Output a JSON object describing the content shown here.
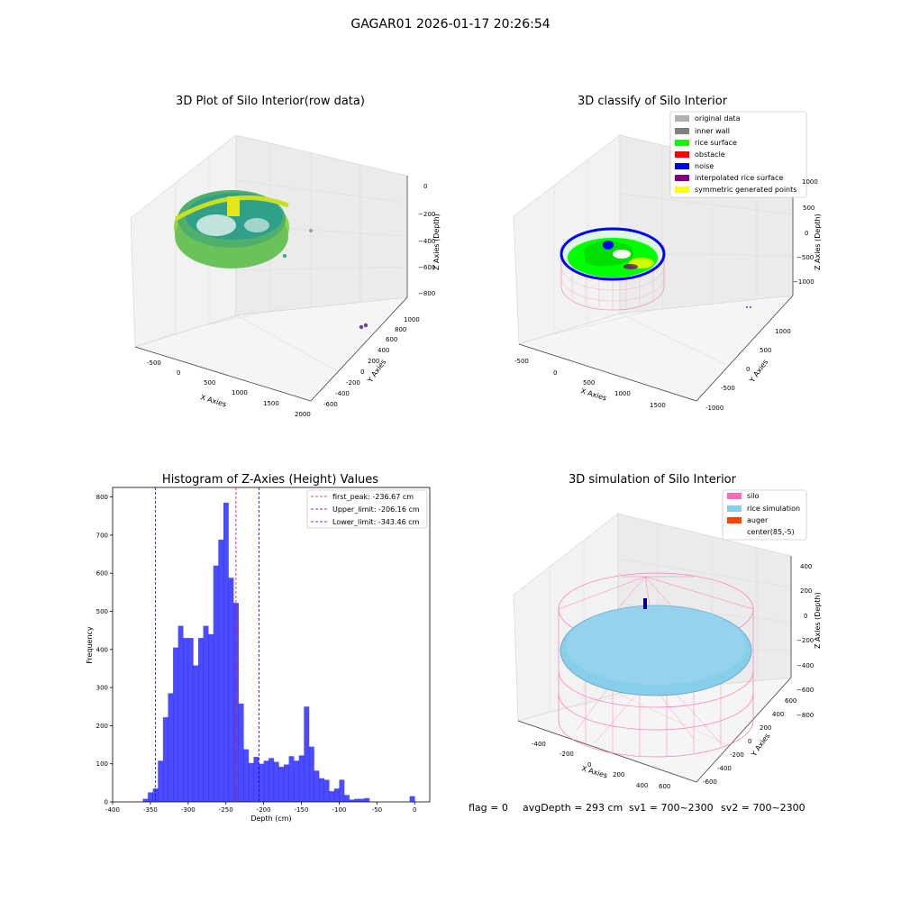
{
  "figure": {
    "suptitle": "GAGAR01 2026-01-17 20:26:54",
    "footer": {
      "flag": "flag = 0",
      "avg_depth": "avgDepth = 293 cm",
      "sv1": "sv1 = 700~2300",
      "sv2": "sv2 = 700~2300"
    }
  },
  "panel_raw": {
    "title": "3D Plot of Silo Interior(row data)",
    "xlabel": "X Axies",
    "ylabel": "Y Axies",
    "zlabel": "Z Axies (Depth)",
    "x_ticks": [
      "-500",
      "0",
      "500",
      "1000",
      "1500",
      "2000"
    ],
    "y_ticks": [
      "-600",
      "-400",
      "-200",
      "0",
      "200",
      "400",
      "600",
      "800",
      "1000"
    ],
    "z_ticks": [
      "0",
      "−200",
      "−400",
      "−600",
      "−800"
    ],
    "colors": {
      "surface_a": "#8fd744",
      "surface_b": "#2a9d8f",
      "rim": "#c8e020",
      "outlier": "#6b3fa0"
    }
  },
  "panel_classify": {
    "title": "3D classify of Silo Interior",
    "xlabel": "X Axies",
    "ylabel": "Y Axies",
    "zlabel": "Z Axies (Depth)",
    "x_ticks": [
      "-500",
      "0",
      "500",
      "1000",
      "1500"
    ],
    "y_ticks": [
      "-1000",
      "-500",
      "0",
      "500",
      "1000"
    ],
    "z_ticks": [
      "1000",
      "500",
      "0",
      "−500",
      "−1000"
    ],
    "legend": [
      {
        "label": "original data",
        "color": "#b0b0b0"
      },
      {
        "label": "inner wall",
        "color": "#808080"
      },
      {
        "label": "rice surface",
        "color": "#00ff00"
      },
      {
        "label": "obstacle",
        "color": "#ff0000"
      },
      {
        "label": "noise",
        "color": "#0000ff"
      },
      {
        "label": "interpolated rice surface",
        "color": "#800080"
      },
      {
        "label": "symmetric generated points",
        "color": "#ffff00"
      }
    ]
  },
  "panel_sim": {
    "title": "3D simulation of Silo Interior",
    "xlabel": "X Axies",
    "ylabel": "Y Axies",
    "zlabel": "Z Axies (Depth)",
    "x_ticks": [
      "-400",
      "-200",
      "0",
      "200",
      "400",
      "600"
    ],
    "y_ticks": [
      "-600",
      "-400",
      "-200",
      "0",
      "200",
      "400",
      "600"
    ],
    "z_ticks": [
      "400",
      "200",
      "0",
      "−200",
      "−400",
      "−600",
      "−800"
    ],
    "legend": [
      {
        "label": "silo",
        "color": "#ff69b4"
      },
      {
        "label": "rice simulation",
        "color": "#87ceeb"
      },
      {
        "label": "auger",
        "color": "#ff4500"
      },
      {
        "label": "center(85,-5)",
        "color": ""
      }
    ]
  },
  "chart_data": {
    "type": "bar",
    "title": "Histogram of Z-Axies (Height) Values",
    "xlabel": "Depth (cm)",
    "ylabel": "Frequency",
    "xlim": [
      -400,
      20
    ],
    "ylim": [
      0,
      825
    ],
    "x_ticks": [
      -400,
      -350,
      -300,
      -250,
      -200,
      -150,
      -100,
      -50,
      0
    ],
    "y_ticks": [
      0,
      100,
      200,
      300,
      400,
      500,
      600,
      700,
      800
    ],
    "bar_color": "#0000ff",
    "bin_width": 6.67,
    "bin_starts": [
      -360,
      -353.33,
      -346.67,
      -340,
      -333.33,
      -326.67,
      -320,
      -313.33,
      -306.67,
      -300,
      -293.33,
      -286.67,
      -280,
      -273.33,
      -266.67,
      -260,
      -253.33,
      -246.67,
      -240,
      -233.33,
      -226.67,
      -220,
      -213.33,
      -206.67,
      -200,
      -193.33,
      -186.67,
      -180,
      -173.33,
      -166.67,
      -160,
      -153.33,
      -146.67,
      -140,
      -133.33,
      -126.67,
      -120,
      -113.33,
      -106.67,
      -100,
      -93.33,
      -86.67,
      -80,
      -73.33,
      -66.67,
      -60,
      -53.33,
      -46.67,
      -40,
      -33.33,
      -26.67,
      -20,
      -13.33,
      -6.67,
      0
    ],
    "values": [
      8,
      25,
      35,
      108,
      222,
      285,
      405,
      462,
      430,
      430,
      358,
      430,
      462,
      440,
      620,
      688,
      785,
      588,
      522,
      258,
      138,
      102,
      118,
      100,
      108,
      115,
      105,
      92,
      98,
      120,
      108,
      122,
      250,
      145,
      82,
      62,
      58,
      28,
      35,
      58,
      18,
      6,
      8,
      8,
      10,
      0,
      0,
      0,
      0,
      0,
      0,
      0,
      0,
      15,
      0
    ],
    "lines": [
      {
        "label": "first_peak: -236.67 cm",
        "x": -236.67,
        "color": "#ff0000"
      },
      {
        "label": "Upper_limit: -206.16 cm",
        "x": -206.16,
        "color": "#0000ff"
      },
      {
        "label": "Lower_limit: -343.46 cm",
        "x": -343.46,
        "color": "#0000ff"
      }
    ],
    "legend_position": "top-right",
    "grid": false
  }
}
